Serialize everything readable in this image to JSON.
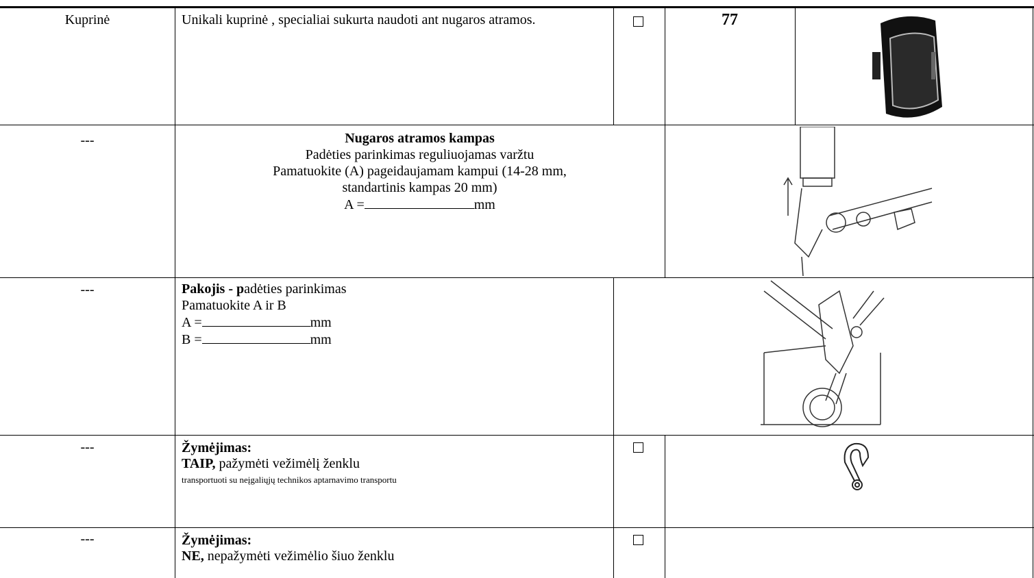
{
  "table": {
    "rows": [
      {
        "name": "Kuprinė",
        "description": "Unikali kuprinė , specialiai sukurta naudoti ant nugaros atramos.",
        "number": "77"
      },
      {
        "name": "---",
        "title": "Nugaros atramos kampas",
        "lines": [
          "Padėties parinkimas reguliuojamas varžtu",
          "Pamatuokite (A) pageidaujamam kampui (14-28 mm,",
          "standartinis kampas 20 mm)"
        ],
        "fields": [
          {
            "label": "A =",
            "unit": "mm"
          }
        ]
      },
      {
        "name": "---",
        "title_bold": "Pakojis - p",
        "title_rest": "adėties parinkimas",
        "lines": [
          "Pamatuokite A ir B"
        ],
        "fields": [
          {
            "label": "A =",
            "unit": "mm"
          },
          {
            "label": "B =",
            "unit": "mm"
          }
        ]
      },
      {
        "name": "---",
        "title": "Žymėjimas:",
        "option_bold": "TAIP,",
        "option_text": "pažymėti vežimėlį ženklu",
        "note": "transportuoti su neįgaliųjų technikos aptarnavimo transportu"
      },
      {
        "name": "---",
        "title": "Žymėjimas:",
        "option_bold": "NE,",
        "option_text": "nepažymėti vežimėlio šiuo ženklu"
      }
    ]
  }
}
